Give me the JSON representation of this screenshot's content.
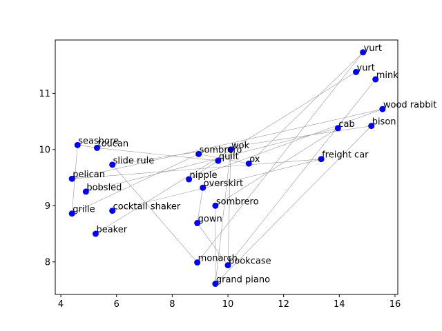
{
  "chart_data": {
    "type": "scatter",
    "title": "",
    "xlabel": "",
    "ylabel": "",
    "xlim": [
      3.8,
      16.1
    ],
    "ylim": [
      7.42,
      11.95
    ],
    "xticks": [
      4,
      6,
      8,
      10,
      12,
      14,
      16
    ],
    "yticks": [
      8,
      9,
      10,
      11
    ],
    "grid": false,
    "marker_color": "#0000ff",
    "edge_color": "#999999",
    "points": [
      {
        "label": "yurt",
        "x": 14.85,
        "y": 11.73
      },
      {
        "label": "yurt",
        "x": 14.6,
        "y": 11.38
      },
      {
        "label": "mink",
        "x": 15.3,
        "y": 11.25
      },
      {
        "label": "wood rabbit",
        "x": 15.55,
        "y": 10.72
      },
      {
        "label": "bison",
        "x": 15.15,
        "y": 10.42
      },
      {
        "label": "cab",
        "x": 13.95,
        "y": 10.38
      },
      {
        "label": "freight car",
        "x": 13.35,
        "y": 9.83
      },
      {
        "label": "seashore",
        "x": 4.6,
        "y": 10.08
      },
      {
        "label": "toucan",
        "x": 5.3,
        "y": 10.03
      },
      {
        "label": "slide rule",
        "x": 5.85,
        "y": 9.73
      },
      {
        "label": "pelican",
        "x": 4.4,
        "y": 9.48
      },
      {
        "label": "bobsled",
        "x": 4.9,
        "y": 9.25
      },
      {
        "label": "grille",
        "x": 4.4,
        "y": 8.86
      },
      {
        "label": "cocktail shaker",
        "x": 5.85,
        "y": 8.91
      },
      {
        "label": "beaker",
        "x": 5.25,
        "y": 8.5
      },
      {
        "label": "sombrero",
        "x": 8.95,
        "y": 9.92
      },
      {
        "label": "wok",
        "x": 10.1,
        "y": 10.0
      },
      {
        "label": "quilt",
        "x": 9.65,
        "y": 9.8
      },
      {
        "label": "ox",
        "x": 10.75,
        "y": 9.75
      },
      {
        "label": "nipple",
        "x": 8.6,
        "y": 9.47
      },
      {
        "label": "overskirt",
        "x": 9.1,
        "y": 9.32
      },
      {
        "label": "sombrero",
        "x": 9.55,
        "y": 9.0
      },
      {
        "label": "gown",
        "x": 8.9,
        "y": 8.69
      },
      {
        "label": "monarch",
        "x": 8.9,
        "y": 7.99
      },
      {
        "label": "bookcase",
        "x": 10.0,
        "y": 7.94
      },
      {
        "label": "grand piano",
        "x": 9.55,
        "y": 7.61
      }
    ],
    "edges": [
      [
        0,
        23
      ],
      [
        1,
        14
      ],
      [
        2,
        24
      ],
      [
        3,
        10
      ],
      [
        4,
        9
      ],
      [
        4,
        25
      ],
      [
        5,
        11
      ],
      [
        5,
        21
      ],
      [
        6,
        13
      ],
      [
        7,
        8
      ],
      [
        7,
        12
      ],
      [
        8,
        17
      ],
      [
        9,
        23
      ],
      [
        15,
        18
      ],
      [
        15,
        12
      ],
      [
        16,
        25
      ],
      [
        17,
        19
      ],
      [
        19,
        3
      ],
      [
        20,
        22
      ],
      [
        21,
        25
      ],
      [
        22,
        24
      ],
      [
        0,
        18
      ],
      [
        6,
        10
      ],
      [
        16,
        24
      ]
    ]
  }
}
